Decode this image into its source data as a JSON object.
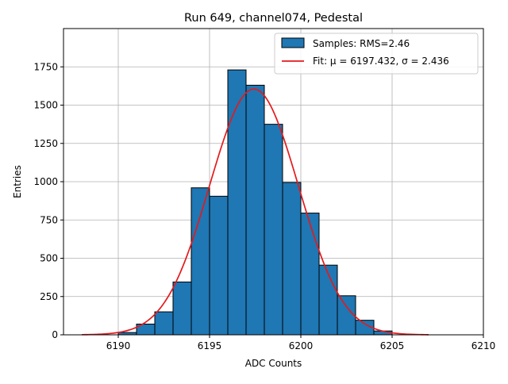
{
  "chart_data": {
    "type": "bar",
    "title": "Run 649, channel074, Pedestal",
    "xlabel": "ADC Counts",
    "ylabel": "Entries",
    "xlim": [
      6187,
      6210
    ],
    "ylim": [
      0,
      2000
    ],
    "xticks": [
      6190,
      6195,
      6200,
      6205,
      6210
    ],
    "yticks": [
      0,
      250,
      500,
      750,
      1000,
      1250,
      1500,
      1750
    ],
    "grid": true,
    "legend_position": "top-right",
    "bar_color": "#1f77b4",
    "fit_color": "#e41a1c",
    "bin_edges": [
      6190,
      6191,
      6192,
      6193,
      6194,
      6195,
      6196,
      6197,
      6198,
      6199,
      6200,
      6201,
      6202,
      6203,
      6204,
      6205
    ],
    "counts": [
      15,
      70,
      150,
      345,
      960,
      905,
      1730,
      1630,
      1375,
      995,
      795,
      455,
      255,
      95,
      25
    ],
    "fit": {
      "mu": 6197.432,
      "sigma": 2.436,
      "peak": 1605,
      "x_range": [
        6188,
        6207
      ]
    },
    "legend": [
      {
        "kind": "patch",
        "label": "Samples: RMS=2.46"
      },
      {
        "kind": "line",
        "label": "Fit: μ = 6197.432, σ = 2.436"
      }
    ]
  }
}
